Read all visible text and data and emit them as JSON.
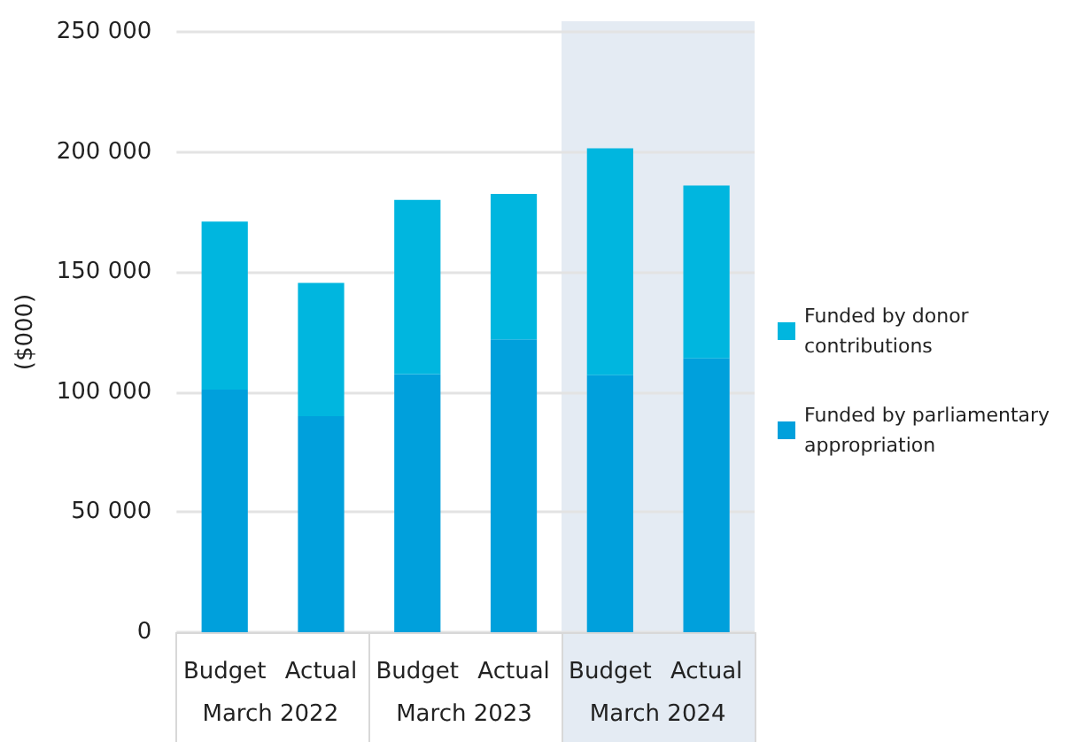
{
  "chart_data": {
    "type": "bar",
    "stacked": true,
    "ylabel": "($000)",
    "categories": [
      "Budget",
      "Actual",
      "Budget",
      "Actual",
      "Budget",
      "Actual"
    ],
    "annotations": [
      "March 2022",
      "March 2023",
      "March 2024"
    ],
    "series": [
      {
        "name": "Funded by parliamentary appropriation",
        "color": "#00a0dc",
        "values": [
          101000,
          90000,
          107500,
          122000,
          107000,
          114000
        ]
      },
      {
        "name": "Funded by donor contributions",
        "color": "#00b6df",
        "values": [
          70000,
          55500,
          72500,
          60500,
          94500,
          72000
        ]
      }
    ],
    "ylim": [
      0,
      250000
    ],
    "yticks": [
      0,
      {
        "value": 50000,
        "label": "50 000"
      },
      {
        "value": 100000,
        "label": "100 000"
      },
      {
        "value": 150000,
        "label": "150 000"
      },
      {
        "value": 200000,
        "label": "200 000"
      },
      {
        "value": 250000,
        "label": "250 000"
      }
    ],
    "grid": "y",
    "legend": "right"
  }
}
